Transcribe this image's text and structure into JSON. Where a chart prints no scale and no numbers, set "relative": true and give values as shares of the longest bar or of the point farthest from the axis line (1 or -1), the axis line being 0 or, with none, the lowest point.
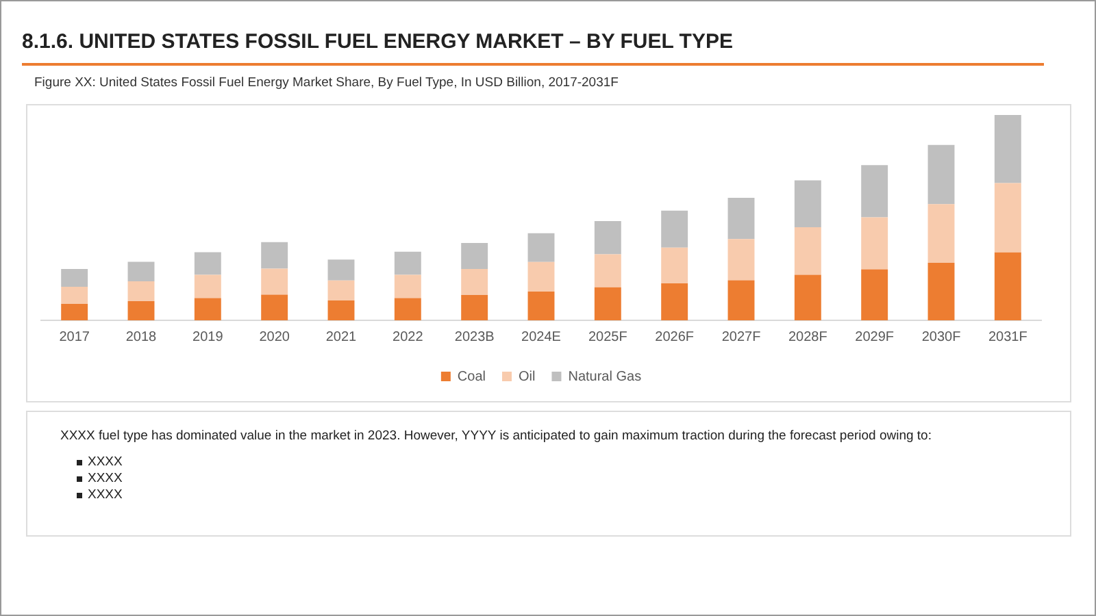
{
  "chart_data": {
    "type": "bar",
    "title": "8.1.6. UNITED STATES FOSSIL FUEL ENERGY MARKET – BY FUEL TYPE",
    "subtitle": "Figure XX: United States Fossil Fuel Energy Market Share, By Fuel Type, In USD Billion, 2017-2031F",
    "categories": [
      "2017",
      "2018",
      "2019",
      "2020",
      "2021",
      "2022",
      "2023B",
      "2024E",
      "2025F",
      "2026F",
      "2027F",
      "2028F",
      "2029F",
      "2030F",
      "2031F"
    ],
    "relative": true,
    "stacked": true,
    "legend": "bottom",
    "grid": false,
    "series": [
      {
        "name": "Coal",
        "color": "#ed7d31",
        "values": [
          0.08,
          0.093,
          0.108,
          0.125,
          0.097,
          0.108,
          0.123,
          0.14,
          0.161,
          0.18,
          0.195,
          0.222,
          0.248,
          0.28,
          0.331
        ]
      },
      {
        "name": "Oil",
        "color": "#f8cbad",
        "values": [
          0.083,
          0.097,
          0.114,
          0.127,
          0.097,
          0.114,
          0.127,
          0.144,
          0.161,
          0.174,
          0.201,
          0.231,
          0.254,
          0.286,
          0.337
        ]
      },
      {
        "name": "Natural Gas",
        "color": "#bfbfbf",
        "values": [
          0.087,
          0.095,
          0.11,
          0.129,
          0.102,
          0.112,
          0.127,
          0.14,
          0.161,
          0.18,
          0.201,
          0.229,
          0.254,
          0.288,
          0.332
        ]
      }
    ],
    "annotations": [
      "XXXX fuel type has dominated value in the market in 2023. However, YYYY is anticipated to gain maximum traction during the forecast period owing to:",
      "XXXX",
      "XXXX",
      "XXXX"
    ]
  }
}
